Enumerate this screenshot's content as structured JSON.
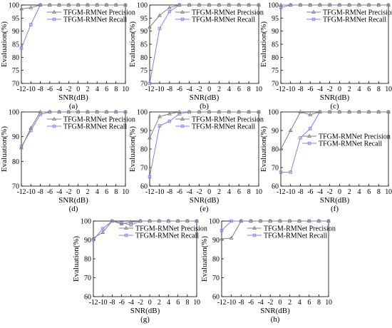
{
  "colors": {
    "precision": "#808080",
    "recall": "#8080f0",
    "axis": "#000000",
    "grid": "#cccccc"
  },
  "markers": {
    "precision": "triangle-up",
    "recall": "square"
  },
  "chart_data": [
    {
      "type": "line",
      "panel_label": "(a)",
      "xlabel": "SNR(dB)",
      "ylabel": "Evaluation(%)",
      "x": [
        -12,
        -10,
        -8,
        -6,
        -4,
        -2,
        0,
        2,
        4,
        6,
        8,
        10
      ],
      "ylim": [
        70,
        100
      ],
      "yticks": [
        70,
        75,
        80,
        85,
        90,
        95,
        100
      ],
      "legend_position": "top-right",
      "grid": false,
      "series": [
        {
          "name": "TFGM-RMNet Precision",
          "values": [
            98.5,
            99,
            100,
            100,
            100,
            100,
            100,
            100,
            100,
            100,
            100,
            100
          ]
        },
        {
          "name": "TFGM-RMNet Recall",
          "values": [
            83.5,
            92.5,
            100,
            100,
            100,
            100,
            100,
            100,
            100,
            100,
            100,
            100
          ]
        }
      ]
    },
    {
      "type": "line",
      "panel_label": "(b)",
      "xlabel": "SNR(dB)",
      "ylabel": "Evaluation(%)",
      "x": [
        -12,
        -10,
        -8,
        -6,
        -4,
        -2,
        0,
        2,
        4,
        6,
        8,
        10
      ],
      "ylim": [
        70,
        100
      ],
      "yticks": [
        70,
        75,
        80,
        85,
        90,
        95,
        100
      ],
      "legend_position": "top-right",
      "grid": false,
      "series": [
        {
          "name": "TFGM-RMNet Precision",
          "values": [
            91.5,
            96,
            99,
            100,
            100,
            100,
            100,
            100,
            100,
            100,
            100,
            100
          ]
        },
        {
          "name": "TFGM-RMNet Recall",
          "values": [
            70,
            91,
            97.5,
            100,
            100,
            100,
            100,
            100,
            100,
            100,
            100,
            100
          ]
        }
      ]
    },
    {
      "type": "line",
      "panel_label": "(c)",
      "xlabel": "SNR(dB)",
      "ylabel": "Evaluation(%)",
      "x": [
        -12,
        -10,
        -8,
        -6,
        -4,
        -2,
        0,
        2,
        4,
        6,
        8,
        10
      ],
      "ylim": [
        70,
        100
      ],
      "yticks": [
        70,
        75,
        80,
        85,
        90,
        95,
        100
      ],
      "legend_position": "top-right",
      "grid": false,
      "series": [
        {
          "name": "TFGM-RMNet Precision",
          "values": [
            100,
            100,
            100,
            100,
            100,
            100,
            100,
            100,
            100,
            100,
            100,
            100
          ]
        },
        {
          "name": "TFGM-RMNet Recall",
          "values": [
            99,
            100,
            100,
            100,
            100,
            100,
            100,
            100,
            100,
            100,
            100,
            100
          ]
        }
      ]
    },
    {
      "type": "line",
      "panel_label": "(d)",
      "xlabel": "SNR(dB)",
      "ylabel": "Evaluation(%)",
      "x": [
        -12,
        -10,
        -8,
        -6,
        -4,
        -2,
        0,
        2,
        4,
        6,
        8,
        10
      ],
      "ylim": [
        70,
        100
      ],
      "yticks": [
        70,
        80,
        90,
        100
      ],
      "legend_position": "top-right",
      "grid": false,
      "series": [
        {
          "name": "TFGM-RMNet Precision",
          "values": [
            85.5,
            93.5,
            100,
            100,
            100,
            100,
            100,
            100,
            100,
            100,
            100,
            100
          ]
        },
        {
          "name": "TFGM-RMNet Recall",
          "values": [
            86,
            92.5,
            99,
            100,
            100,
            100,
            100,
            100,
            100,
            100,
            100,
            100
          ]
        }
      ]
    },
    {
      "type": "line",
      "panel_label": "(e)",
      "xlabel": "SNR(dB)",
      "ylabel": "Evaluation(%)",
      "x": [
        -12,
        -10,
        -8,
        -6,
        -4,
        -2,
        0,
        2,
        4,
        6,
        8,
        10
      ],
      "ylim": [
        60,
        100
      ],
      "yticks": [
        60,
        70,
        80,
        90,
        100
      ],
      "legend_position": "top-right",
      "grid": false,
      "series": [
        {
          "name": "TFGM-RMNet Precision",
          "values": [
            86,
            97.5,
            99,
            100,
            100,
            100,
            100,
            100,
            100,
            100,
            100,
            100
          ]
        },
        {
          "name": "TFGM-RMNet Recall",
          "values": [
            65,
            92.5,
            95,
            99,
            100,
            100,
            100,
            100,
            100,
            100,
            100,
            100
          ]
        }
      ]
    },
    {
      "type": "line",
      "panel_label": "(f)",
      "xlabel": "SNR(dB)",
      "ylabel": "Evaluation(%)",
      "x": [
        -12,
        -10,
        -8,
        -6,
        -4,
        -2,
        0,
        2,
        4,
        6,
        8,
        10
      ],
      "ylim": [
        60,
        100
      ],
      "yticks": [
        60,
        70,
        80,
        90,
        100
      ],
      "legend_position": "center-right",
      "grid": false,
      "series": [
        {
          "name": "TFGM-RMNet Precision",
          "values": [
            80,
            90,
            100,
            98.5,
            100,
            100,
            100,
            100,
            100,
            100,
            100,
            100
          ]
        },
        {
          "name": "TFGM-RMNet Recall",
          "values": [
            67.5,
            67.5,
            86,
            91,
            100,
            100,
            100,
            100,
            100,
            100,
            100,
            100
          ]
        }
      ]
    },
    {
      "type": "line",
      "panel_label": "(g)",
      "xlabel": "SNR(dB)",
      "ylabel": "Evaluation(%)",
      "x": [
        -12,
        -10,
        -8,
        -6,
        -4,
        -2,
        0,
        2,
        4,
        6,
        8,
        10
      ],
      "ylim": [
        60,
        100
      ],
      "yticks": [
        60,
        70,
        80,
        90,
        100
      ],
      "legend_position": "top-right",
      "grid": false,
      "series": [
        {
          "name": "TFGM-RMNet Precision",
          "values": [
            91,
            94,
            100,
            98.5,
            99.5,
            100,
            100,
            100,
            100,
            100,
            100,
            100
          ]
        },
        {
          "name": "TFGM-RMNet Recall",
          "values": [
            90,
            96,
            100,
            99,
            98,
            100,
            100,
            100,
            100,
            100,
            100,
            100
          ]
        }
      ]
    },
    {
      "type": "line",
      "panel_label": "(h)",
      "xlabel": "SNR(dB)",
      "ylabel": "Evaluation(%)",
      "x": [
        -12,
        -10,
        -8,
        -6,
        -4,
        -2,
        0,
        2,
        4,
        6,
        8,
        10
      ],
      "ylim": [
        60,
        100
      ],
      "yticks": [
        60,
        70,
        80,
        90,
        100
      ],
      "legend_position": "top-right",
      "grid": false,
      "series": [
        {
          "name": "TFGM-RMNet Precision",
          "values": [
            90.5,
            91,
            100,
            100,
            100,
            100,
            100,
            100,
            100,
            100,
            100,
            100
          ]
        },
        {
          "name": "TFGM-RMNet Recall",
          "values": [
            95,
            100,
            100,
            100,
            100,
            100,
            100,
            100,
            100,
            100,
            100,
            100
          ]
        }
      ]
    }
  ]
}
